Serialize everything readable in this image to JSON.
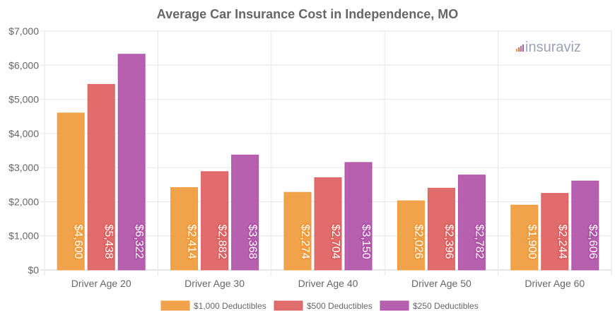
{
  "chart_data": {
    "type": "bar",
    "title": "Average Car Insurance Cost in Independence, MO",
    "xlabel": "",
    "ylabel": "",
    "categories": [
      "Driver Age 20",
      "Driver Age 30",
      "Driver Age 40",
      "Driver Age 50",
      "Driver Age 60"
    ],
    "series": [
      {
        "name": "$1,000 Deductibles",
        "color": "#ef9b3c",
        "values": [
          4600,
          2414,
          2274,
          2026,
          1900
        ],
        "labels": [
          "$4,600",
          "$2,414",
          "$2,274",
          "$2,026",
          "$1,900"
        ]
      },
      {
        "name": "$500 Deductibles",
        "color": "#dd6060",
        "values": [
          5438,
          2882,
          2704,
          2396,
          2244
        ],
        "labels": [
          "$5,438",
          "$2,882",
          "$2,704",
          "$2,396",
          "$2,244"
        ]
      },
      {
        "name": "$250 Deductibles",
        "color": "#b052a8",
        "values": [
          6322,
          3368,
          3150,
          2782,
          2606
        ],
        "labels": [
          "$6,322",
          "$3,368",
          "$3,150",
          "$2,782",
          "$2,606"
        ]
      }
    ],
    "ylim": [
      0,
      7000
    ],
    "yticks": [
      0,
      1000,
      2000,
      3000,
      4000,
      5000,
      6000,
      7000
    ],
    "ytick_labels": [
      "$0",
      "$1,000",
      "$2,000",
      "$3,000",
      "$4,000",
      "$5,000",
      "$6,000",
      "$7,000"
    ],
    "grid": true,
    "legend_position": "bottom"
  },
  "logo": {
    "text": "insuraviz",
    "icon": "bar-chart-icon",
    "color": "#9aa3b5"
  }
}
